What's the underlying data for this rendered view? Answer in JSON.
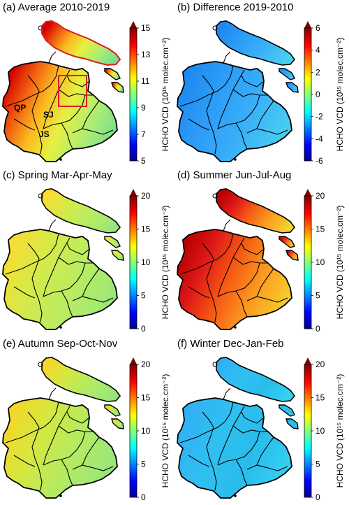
{
  "panels": [
    {
      "title": "(a) Average 2010-2019",
      "ticks": [
        "5",
        "7",
        "9",
        "11",
        "13",
        "15"
      ],
      "colorbar_label": "HCHO VCD (10¹⁵ molec.cm⁻²)",
      "field": "avg"
    },
    {
      "title": "(b) Difference 2019-2010",
      "ticks": [
        "-6",
        "-4",
        "-2",
        "0",
        "2",
        "4",
        "6"
      ],
      "colorbar_label": "HCHO VCD (10¹⁵ molec.cm⁻²)",
      "field": "diff"
    },
    {
      "title": "(c) Spring Mar-Apr-May",
      "ticks": [
        "0",
        "5",
        "10",
        "15",
        "20"
      ],
      "colorbar_label": "HCHO VCD (10¹⁵ molec.cm⁻²)",
      "field": "spring"
    },
    {
      "title": "(d) Summer Jun-Jul-Aug",
      "ticks": [
        "0",
        "5",
        "10",
        "15",
        "20"
      ],
      "colorbar_label": "HCHO VCD (10¹⁵ molec.cm⁻²)",
      "field": "summer"
    },
    {
      "title": "(e) Autumn Sep-Oct-Nov",
      "ticks": [
        "0",
        "5",
        "10",
        "15",
        "20"
      ],
      "colorbar_label": "HCHO VCD (10¹⁵ molec.cm⁻²)",
      "field": "autumn"
    },
    {
      "title": "(f) Winter Dec-Jan-Feb",
      "ticks": [
        "0",
        "5",
        "10",
        "15",
        "20"
      ],
      "colorbar_label": "HCHO VCD (10¹⁵ molec.cm⁻²)",
      "field": "winter"
    }
  ],
  "region_labels": {
    "qp": "QP",
    "sj": "SJ",
    "js": "JS"
  },
  "colors": {
    "outline": "#000000",
    "highlight": "#e02020"
  }
}
